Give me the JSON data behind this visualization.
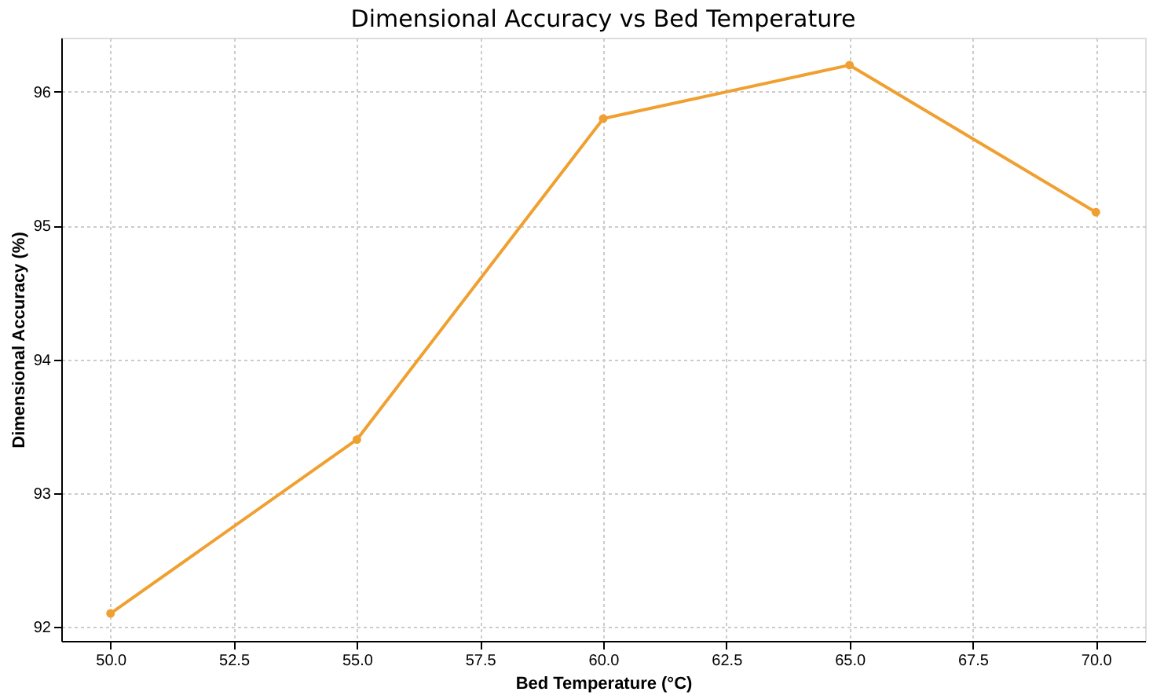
{
  "chart_data": {
    "type": "line",
    "title": "Dimensional Accuracy vs Bed Temperature",
    "xlabel": "Bed Temperature (°C)",
    "ylabel": "Dimensional Accuracy (%)",
    "x": [
      50,
      55,
      60,
      65,
      70
    ],
    "series": [
      {
        "color": "#f0a030",
        "values": [
          92.1,
          93.4,
          95.8,
          96.2,
          95.1
        ]
      }
    ],
    "xlim": [
      49,
      71
    ],
    "xticks": [
      {
        "value": 50,
        "label": "50.0"
      },
      {
        "value": 52.5,
        "label": "52.5"
      },
      {
        "value": 55,
        "label": "55.0"
      },
      {
        "value": 57.5,
        "label": "57.5"
      },
      {
        "value": 60,
        "label": "60.0"
      },
      {
        "value": 62.5,
        "label": "62.5"
      },
      {
        "value": 65,
        "label": "65.0"
      },
      {
        "value": 67.5,
        "label": "67.5"
      },
      {
        "value": 70,
        "label": "70.0"
      }
    ],
    "ylim": [
      91.895,
      96.405
    ],
    "yticks": [
      92,
      93,
      94,
      95,
      96
    ],
    "grid": true,
    "marker": "circle",
    "line_style": "solid"
  }
}
